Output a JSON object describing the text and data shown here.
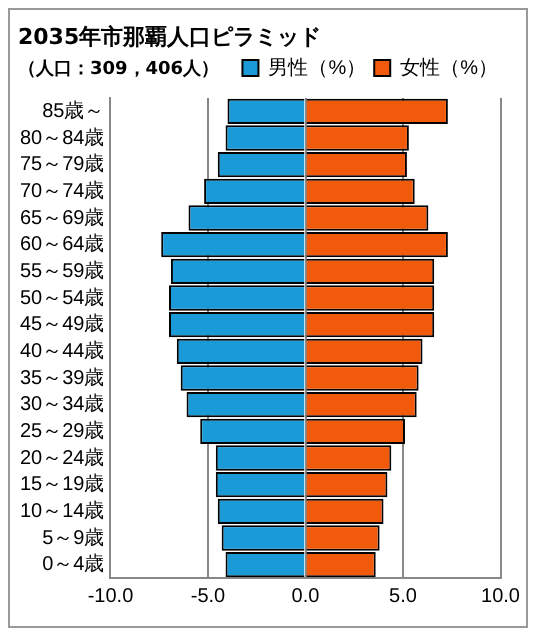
{
  "chart_data": {
    "type": "bar",
    "orientation": "horizontal",
    "stacked": true,
    "title": "2035年市那覇人口ピラミッド",
    "subtitle": "（人口：309，406人）",
    "categories": [
      "85歳～",
      "80～84歳",
      "75～79歳",
      "70～74歳",
      "65～69歳",
      "60～64歳",
      "55～59歳",
      "50～54歳",
      "45～49歳",
      "40～44歳",
      "35～39歳",
      "30～34歳",
      "25～29歳",
      "20～24歳",
      "15～19歳",
      "10～14歳",
      "5～9歳",
      "0～4歳"
    ],
    "series": [
      {
        "name": "男性（%）",
        "color": "#1a9ad6",
        "values": [
          -4.0,
          -4.1,
          -4.5,
          -5.2,
          -6.0,
          -7.4,
          -6.9,
          -7.0,
          -7.0,
          -6.6,
          -6.4,
          -6.1,
          -5.4,
          -4.6,
          -4.6,
          -4.5,
          -4.3,
          -4.1
        ]
      },
      {
        "name": "女性（%）",
        "color": "#f05a0a",
        "values": [
          7.3,
          5.3,
          5.2,
          5.6,
          6.3,
          7.3,
          6.6,
          6.6,
          6.6,
          6.0,
          5.8,
          5.7,
          5.1,
          4.4,
          4.2,
          4.0,
          3.8,
          3.6
        ]
      }
    ],
    "xlim": [
      -10,
      10
    ],
    "xticks": [
      {
        "value": -10,
        "label": "-10.0"
      },
      {
        "value": -5,
        "label": "-5.0"
      },
      {
        "value": 0,
        "label": "0.0"
      },
      {
        "value": 5,
        "label": "5.0"
      },
      {
        "value": 10,
        "label": "10.0"
      }
    ],
    "grid": "x",
    "legend": "top right"
  }
}
